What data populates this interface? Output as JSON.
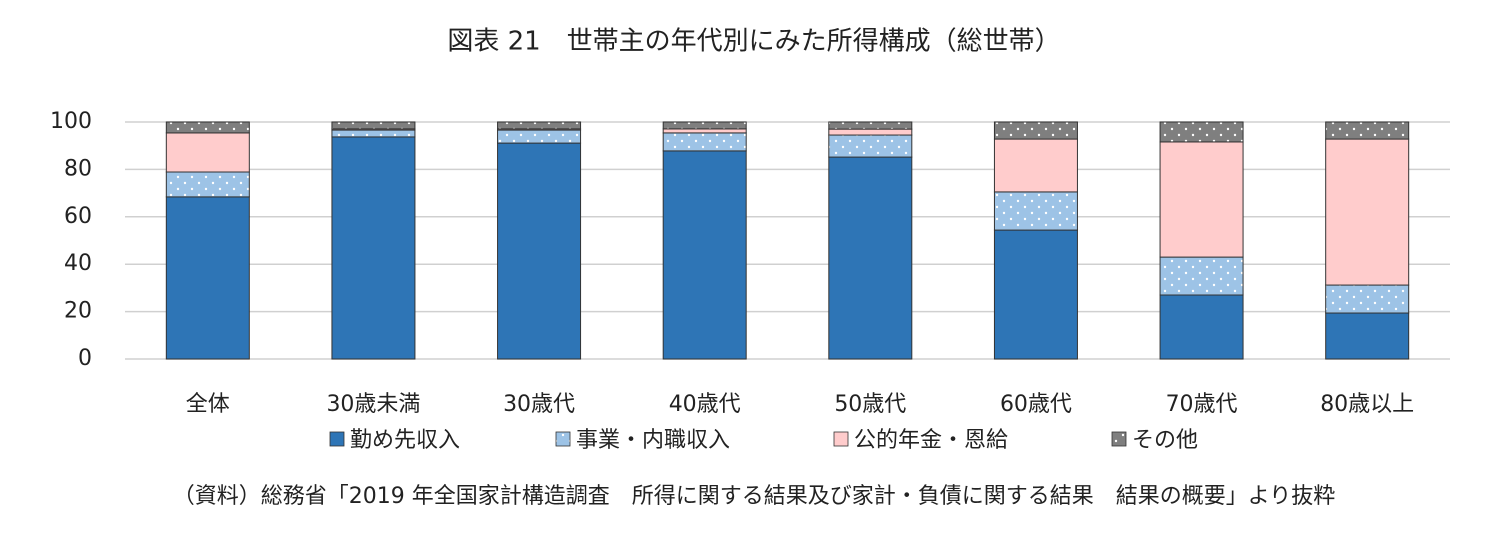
{
  "chart_data": {
    "type": "stacked_bar",
    "title": "図表 21　世帯主の年代別にみた所得構成（総世帯）",
    "source": "（資料）総務省「2019 年全国家計構造調査　所得に関する結果及び家計・負債に関する結果　結果の概要」より抜粋",
    "categories": [
      "全体",
      "30歳未満",
      "30歳代",
      "40歳代",
      "50歳代",
      "60歳代",
      "70歳代",
      "80歳以上"
    ],
    "series": [
      {
        "name": "勤め先収入",
        "color": "#2e75b6",
        "values": [
          68.4,
          93.7,
          91.1,
          87.8,
          85.2,
          54.4,
          27.0,
          19.4
        ]
      },
      {
        "name": "事業・内職収入",
        "color": "#9dc3e6",
        "pattern": "dots",
        "values": [
          10.5,
          2.9,
          5.5,
          7.6,
          9.3,
          16.1,
          16.0,
          11.8
        ]
      },
      {
        "name": "公的年金・恩給",
        "color": "#ffcccc",
        "values": [
          16.5,
          0.5,
          0.5,
          1.7,
          2.5,
          22.3,
          48.6,
          61.6
        ]
      },
      {
        "name": "その他",
        "color": "#7f7f7f",
        "pattern": "dots",
        "values": [
          4.6,
          2.9,
          2.9,
          2.9,
          3.0,
          7.2,
          8.4,
          7.2
        ]
      }
    ],
    "ylim": [
      0,
      100
    ],
    "yticks": [
      0,
      20,
      40,
      60,
      80,
      100
    ],
    "grid": true
  }
}
